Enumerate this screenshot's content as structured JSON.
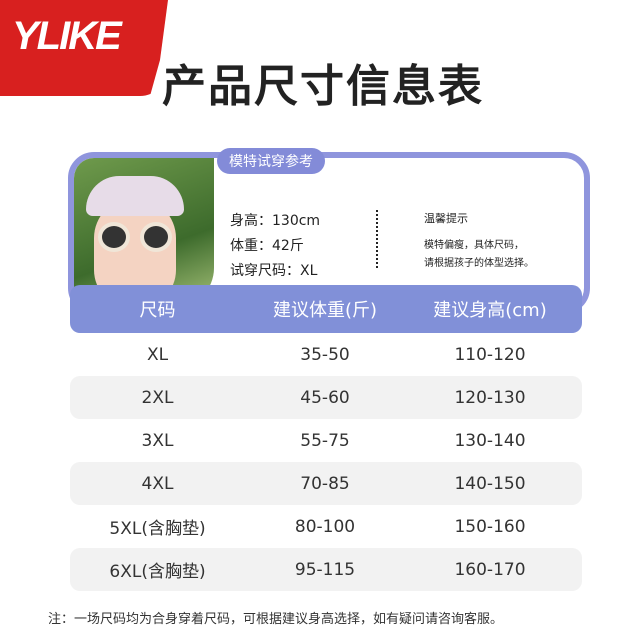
{
  "brand": "YLIKE",
  "title": "产品尺寸信息表",
  "model": {
    "badge": "模特试穿参考",
    "height": "身高：130cm",
    "weight": "体重：42斤",
    "size": "试穿尺码：XL",
    "tip_title": "温馨提示",
    "tip_lines": [
      "模特偏瘦，具体尺码，",
      "请根据孩子的体型选择。"
    ]
  },
  "table": {
    "headers": [
      "尺码",
      "建议体重(斤)",
      "建议身高(cm)"
    ],
    "rows": [
      [
        "XL",
        "35-50",
        "110-120"
      ],
      [
        "2XL",
        "45-60",
        "120-130"
      ],
      [
        "3XL",
        "55-75",
        "130-140"
      ],
      [
        "4XL",
        "70-85",
        "140-150"
      ],
      [
        "5XL(含胸垫)",
        "80-100",
        "150-160"
      ],
      [
        "6XL(含胸垫)",
        "95-115",
        "160-170"
      ]
    ]
  },
  "note": "注：一场尺码均为合身穿着尺码，可根据建议身高选择，如有疑问请咨询客服。",
  "colors": {
    "brand_red": "#d8201f",
    "accent": "#8190d8"
  }
}
